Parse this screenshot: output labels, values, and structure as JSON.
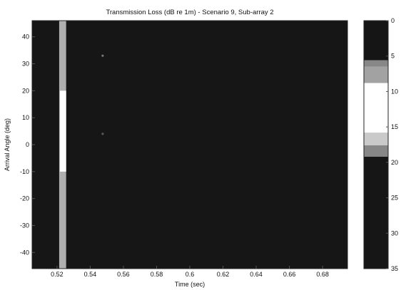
{
  "chart_data": {
    "type": "heatmap",
    "title": "Transmission Loss (dB re 1m) - Scenario 9, Sub-array 2",
    "xlabel": "Time (sec)",
    "ylabel": "Arrival Angle (deg)",
    "xlim": [
      0.505,
      0.695
    ],
    "ylim": [
      -46,
      46
    ],
    "xticks": [
      "0.52",
      "0.54",
      "0.56",
      "0.58",
      "0.6",
      "0.62",
      "0.64",
      "0.66",
      "0.68"
    ],
    "yticks": [
      "40",
      "30",
      "20",
      "10",
      "0",
      "-10",
      "-20",
      "-30",
      "-40"
    ],
    "colorbar": {
      "ticks": [
        "0",
        "5",
        "10",
        "15",
        "20",
        "25",
        "30",
        "35"
      ],
      "range": [
        0,
        35
      ],
      "colormap": "grayscale-banded"
    },
    "background_level_db": 35,
    "bright_band": {
      "time_start": 0.5213,
      "time_end": 0.5255,
      "level_db": 12
    },
    "highlights": [
      {
        "time": 0.5475,
        "angle": 33,
        "level_db": 20
      },
      {
        "time": 0.5475,
        "angle": 4,
        "level_db": 25
      }
    ],
    "grid": false
  }
}
